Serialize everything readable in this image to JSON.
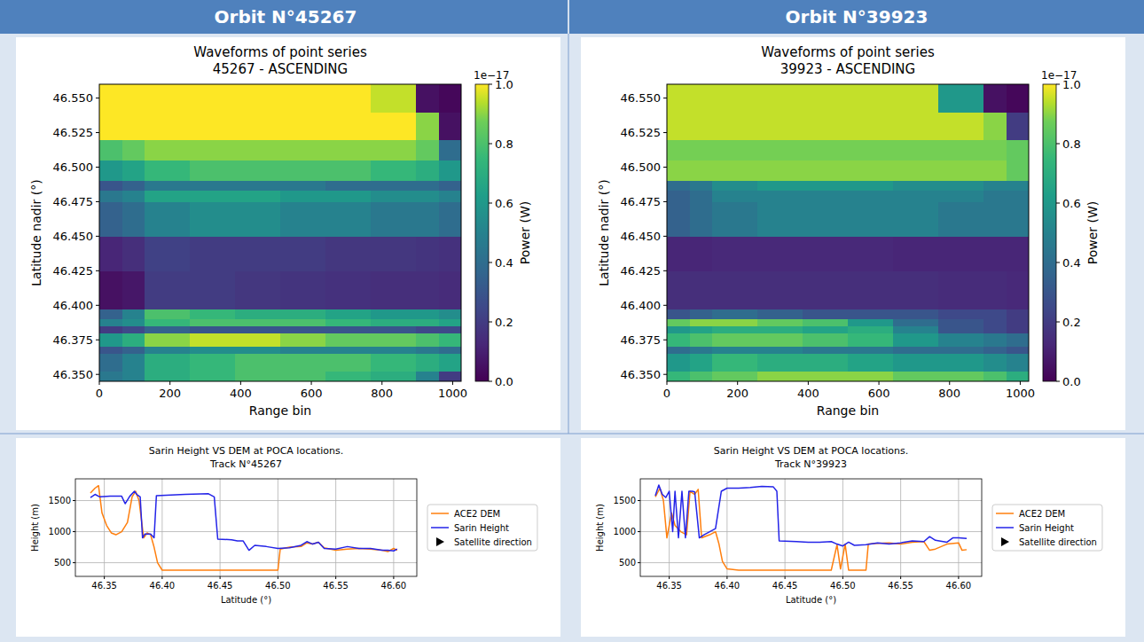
{
  "header": {
    "panels": [
      "Orbit N°45267",
      "Orbit N°39923"
    ]
  },
  "chart_data": [
    {
      "type": "heatmap",
      "title": "Waveforms of point series",
      "subtitle": "45267 - ASCENDING",
      "x_label": "Range bin",
      "y_label": "Latitude nadir (°)",
      "xlim": [
        0,
        1024
      ],
      "xticks": [
        0,
        200,
        400,
        600,
        800,
        1000
      ],
      "ylim": [
        46.345,
        46.56
      ],
      "yticks": [
        {
          "value": 46.35,
          "label": "46.350"
        },
        46.375,
        {
          "value": 46.4,
          "label": "46.400"
        },
        46.425,
        {
          "value": 46.45,
          "label": "46.450"
        },
        46.475,
        {
          "value": 46.5,
          "label": "46.500"
        },
        46.525,
        {
          "value": 46.55,
          "label": "46.550"
        }
      ],
      "x_edges": [
        0,
        64,
        128,
        256,
        384,
        512,
        640,
        768,
        896,
        960,
        1024
      ],
      "y_edges": [
        46.345,
        46.352,
        46.365,
        46.37,
        46.38,
        46.385,
        46.39,
        46.397,
        46.425,
        46.45,
        46.475,
        46.483,
        46.49,
        46.505,
        46.52,
        46.54,
        46.56
      ],
      "cells": [
        [
          0.45,
          0.5,
          0.7,
          0.75,
          0.8,
          0.8,
          0.75,
          0.7,
          0.5,
          0.2
        ],
        [
          0.4,
          0.5,
          0.7,
          0.75,
          0.8,
          0.8,
          0.8,
          0.75,
          0.7,
          0.65
        ],
        [
          0.3,
          0.35,
          0.5,
          0.55,
          0.55,
          0.5,
          0.5,
          0.5,
          0.45,
          0.4
        ],
        [
          0.6,
          0.7,
          0.9,
          0.95,
          0.95,
          0.9,
          0.85,
          0.85,
          0.8,
          0.75
        ],
        [
          0.2,
          0.25,
          0.35,
          0.3,
          0.3,
          0.3,
          0.3,
          0.3,
          0.25,
          0.25
        ],
        [
          0.5,
          0.55,
          0.75,
          0.8,
          0.8,
          0.8,
          0.75,
          0.7,
          0.7,
          0.65
        ],
        [
          0.35,
          0.5,
          0.8,
          0.75,
          0.7,
          0.7,
          0.65,
          0.6,
          0.6,
          0.55
        ],
        [
          0.05,
          0.07,
          0.2,
          0.2,
          0.18,
          0.17,
          0.16,
          0.15,
          0.15,
          0.14
        ],
        [
          0.12,
          0.15,
          0.22,
          0.2,
          0.2,
          0.2,
          0.18,
          0.18,
          0.17,
          0.16
        ],
        [
          0.35,
          0.4,
          0.5,
          0.55,
          0.55,
          0.5,
          0.5,
          0.45,
          0.45,
          0.4
        ],
        [
          0.45,
          0.5,
          0.65,
          0.65,
          0.65,
          0.6,
          0.6,
          0.55,
          0.55,
          0.5
        ],
        [
          0.3,
          0.35,
          0.45,
          0.45,
          0.45,
          0.45,
          0.4,
          0.4,
          0.4,
          0.35
        ],
        [
          0.6,
          0.65,
          0.75,
          0.8,
          0.8,
          0.8,
          0.8,
          0.75,
          0.7,
          0.6
        ],
        [
          0.8,
          0.85,
          0.9,
          0.9,
          0.9,
          0.9,
          0.9,
          0.9,
          0.85,
          0.4
        ],
        [
          1,
          1,
          1,
          1,
          1,
          1,
          1,
          1,
          0.9,
          0.05
        ],
        [
          1,
          1,
          1,
          1,
          1,
          1,
          1,
          0.95,
          0.05,
          0.02
        ]
      ],
      "colorbar": {
        "label": "Power (W)",
        "offset_text": "1e−17",
        "range": [
          0,
          1
        ],
        "ticks": [
          {
            "value": 0,
            "label": "0.0"
          },
          0.2,
          0.4,
          0.6,
          0.8,
          {
            "value": 1,
            "label": "1.0"
          }
        ]
      }
    },
    {
      "type": "heatmap",
      "title": "Waveforms of point series",
      "subtitle": "39923 - ASCENDING",
      "x_label": "Range bin",
      "y_label": "Latitude nadir (°)",
      "xlim": [
        0,
        1024
      ],
      "xticks": [
        0,
        200,
        400,
        600,
        800,
        1000
      ],
      "ylim": [
        46.345,
        46.56
      ],
      "yticks": [
        {
          "value": 46.35,
          "label": "46.350"
        },
        46.375,
        {
          "value": 46.4,
          "label": "46.400"
        },
        46.425,
        {
          "value": 46.45,
          "label": "46.450"
        },
        46.475,
        {
          "value": 46.5,
          "label": "46.500"
        },
        46.525,
        {
          "value": 46.55,
          "label": "46.550"
        }
      ],
      "x_edges": [
        0,
        64,
        128,
        256,
        384,
        512,
        640,
        768,
        896,
        960,
        1024
      ],
      "y_edges": [
        46.345,
        46.352,
        46.365,
        46.37,
        46.38,
        46.385,
        46.39,
        46.397,
        46.425,
        46.45,
        46.475,
        46.483,
        46.49,
        46.505,
        46.52,
        46.54,
        46.56
      ],
      "cells": [
        [
          0.75,
          0.8,
          0.85,
          0.9,
          0.9,
          0.9,
          0.85,
          0.85,
          0.8,
          0.7
        ],
        [
          0.6,
          0.65,
          0.75,
          0.7,
          0.7,
          0.65,
          0.6,
          0.6,
          0.55,
          0.5
        ],
        [
          0.4,
          0.45,
          0.5,
          0.5,
          0.45,
          0.45,
          0.4,
          0.4,
          0.35,
          0.3
        ],
        [
          0.75,
          0.8,
          0.85,
          0.85,
          0.8,
          0.75,
          0.6,
          0.5,
          0.45,
          0.4
        ],
        [
          0.6,
          0.65,
          0.7,
          0.7,
          0.65,
          0.7,
          0.5,
          0.3,
          0.25,
          0.2
        ],
        [
          0.85,
          0.9,
          0.9,
          0.85,
          0.8,
          0.6,
          0.4,
          0.3,
          0.25,
          0.2
        ],
        [
          0.3,
          0.35,
          0.4,
          0.35,
          0.3,
          0.3,
          0.3,
          0.25,
          0.25,
          0.2
        ],
        [
          0.15,
          0.15,
          0.15,
          0.15,
          0.15,
          0.15,
          0.15,
          0.14,
          0.14,
          0.13
        ],
        [
          0.12,
          0.12,
          0.13,
          0.13,
          0.13,
          0.13,
          0.12,
          0.12,
          0.12,
          0.12
        ],
        [
          0.35,
          0.4,
          0.45,
          0.5,
          0.5,
          0.5,
          0.5,
          0.45,
          0.45,
          0.45
        ],
        [
          0.35,
          0.4,
          0.5,
          0.5,
          0.5,
          0.5,
          0.5,
          0.5,
          0.45,
          0.45
        ],
        [
          0.4,
          0.45,
          0.55,
          0.6,
          0.6,
          0.6,
          0.55,
          0.55,
          0.5,
          0.5
        ],
        [
          0.9,
          0.9,
          0.9,
          0.9,
          0.9,
          0.9,
          0.9,
          0.9,
          0.9,
          0.85
        ],
        [
          0.88,
          0.88,
          0.88,
          0.88,
          0.88,
          0.88,
          0.88,
          0.88,
          0.88,
          0.85
        ],
        [
          0.95,
          0.95,
          0.95,
          0.95,
          0.95,
          0.95,
          0.95,
          0.95,
          0.9,
          0.2
        ],
        [
          0.95,
          0.95,
          0.95,
          0.95,
          0.95,
          0.95,
          0.95,
          0.6,
          0.05,
          0.02
        ]
      ],
      "colorbar": {
        "label": "Power (W)",
        "offset_text": "1e−17",
        "range": [
          0,
          1
        ],
        "ticks": [
          {
            "value": 0,
            "label": "0.0"
          },
          0.2,
          0.4,
          0.6,
          0.8,
          {
            "value": 1,
            "label": "1.0"
          }
        ]
      }
    },
    {
      "type": "line",
      "title": "Sarin Height VS DEM at POCA locations.",
      "subtitle": "Track N°45267",
      "x_label": "Latitude (°)",
      "y_label": "Height (m)",
      "xlim": [
        46.325,
        46.62
      ],
      "xticks": [
        46.35,
        {
          "value": 46.4,
          "label": "46.40"
        },
        46.45,
        {
          "value": 46.5,
          "label": "46.50"
        },
        46.55,
        {
          "value": 46.6,
          "label": "46.60"
        }
      ],
      "ylim": [
        280,
        1850
      ],
      "yticks": [
        500,
        1000,
        1500
      ],
      "grid": true,
      "legend": "right",
      "series": [
        {
          "name": "ACE2 DEM",
          "color": "#ff7f0e",
          "x": [
            46.338,
            46.342,
            46.345,
            46.348,
            46.352,
            46.356,
            46.36,
            46.365,
            46.37,
            46.374,
            46.377,
            46.38,
            46.384,
            46.387,
            46.39,
            46.393,
            46.396,
            46.4,
            46.45,
            46.5,
            46.502,
            46.51,
            46.52,
            46.525,
            46.53,
            46.535,
            46.54,
            46.55,
            46.56,
            46.57,
            46.58,
            46.59,
            46.595,
            46.6,
            46.603
          ],
          "values": [
            1620,
            1700,
            1740,
            1300,
            1100,
            980,
            950,
            1000,
            1150,
            1560,
            1650,
            1500,
            900,
            980,
            950,
            750,
            500,
            380,
            380,
            380,
            720,
            750,
            760,
            820,
            800,
            830,
            740,
            700,
            720,
            730,
            720,
            700,
            680,
            730,
            700
          ]
        },
        {
          "name": "Sarin Height",
          "color": "#2424e8",
          "x": [
            46.338,
            46.342,
            46.346,
            46.355,
            46.365,
            46.368,
            46.372,
            46.376,
            46.378,
            46.381,
            46.383,
            46.385,
            46.39,
            46.393,
            46.395,
            46.42,
            46.44,
            46.445,
            46.448,
            46.46,
            46.465,
            46.47,
            46.475,
            46.48,
            46.49,
            46.5,
            46.51,
            46.52,
            46.525,
            46.53,
            46.535,
            46.54,
            46.55,
            46.56,
            46.57,
            46.58,
            46.59,
            46.595,
            46.6,
            46.603
          ],
          "values": [
            1550,
            1600,
            1560,
            1570,
            1570,
            1450,
            1570,
            1650,
            1600,
            1560,
            900,
            960,
            960,
            900,
            1580,
            1600,
            1610,
            1560,
            880,
            870,
            850,
            850,
            700,
            780,
            760,
            730,
            740,
            780,
            840,
            800,
            830,
            730,
            720,
            760,
            730,
            730,
            700,
            700,
            690,
            720
          ]
        },
        {
          "name": "Satellite direction",
          "color": "#000000",
          "marker": "triangle",
          "line_style": "none",
          "x": [],
          "values": []
        }
      ]
    },
    {
      "type": "line",
      "title": "Sarin Height VS DEM at POCA locations.",
      "subtitle": "Track N°39923",
      "x_label": "Latitude (°)",
      "y_label": "Height (m)",
      "xlim": [
        46.325,
        46.62
      ],
      "xticks": [
        46.35,
        {
          "value": 46.4,
          "label": "46.40"
        },
        46.45,
        {
          "value": 46.5,
          "label": "46.50"
        },
        46.55,
        {
          "value": 46.6,
          "label": "46.60"
        }
      ],
      "ylim": [
        280,
        1850
      ],
      "yticks": [
        500,
        1000,
        1500
      ],
      "grid": true,
      "legend": "right",
      "series": [
        {
          "name": "ACE2 DEM",
          "color": "#ff7f0e",
          "x": [
            46.338,
            46.342,
            46.345,
            46.348,
            46.352,
            46.355,
            46.36,
            46.365,
            46.368,
            46.372,
            46.375,
            46.378,
            46.385,
            46.39,
            46.393,
            46.396,
            46.4,
            46.41,
            46.45,
            46.49,
            46.495,
            46.498,
            46.502,
            46.505,
            46.52,
            46.522,
            46.53,
            46.54,
            46.55,
            46.56,
            46.57,
            46.575,
            46.58,
            46.59,
            46.6,
            46.603,
            46.607
          ],
          "values": [
            1560,
            1700,
            1500,
            900,
            1300,
            1100,
            1000,
            950,
            1650,
            1600,
            1680,
            900,
            950,
            1000,
            800,
            520,
            400,
            380,
            380,
            380,
            790,
            400,
            800,
            380,
            380,
            800,
            810,
            820,
            800,
            830,
            840,
            700,
            720,
            800,
            820,
            700,
            710
          ]
        },
        {
          "name": "Sarin Height",
          "color": "#2424e8",
          "x": [
            46.338,
            46.341,
            46.344,
            46.347,
            46.35,
            46.353,
            46.355,
            46.358,
            46.361,
            46.364,
            46.367,
            46.37,
            46.372,
            46.376,
            46.38,
            46.385,
            46.39,
            46.395,
            46.4,
            46.41,
            46.42,
            46.43,
            46.44,
            46.443,
            46.445,
            46.46,
            46.47,
            46.48,
            46.49,
            46.495,
            46.5,
            46.505,
            46.51,
            46.52,
            46.53,
            46.54,
            46.55,
            46.56,
            46.57,
            46.575,
            46.58,
            46.59,
            46.595,
            46.6,
            46.607
          ],
          "values": [
            1580,
            1750,
            1600,
            1550,
            1650,
            1000,
            1650,
            900,
            1650,
            900,
            1650,
            1650,
            1640,
            900,
            950,
            1000,
            1050,
            1650,
            1700,
            1700,
            1710,
            1730,
            1720,
            1650,
            850,
            840,
            830,
            830,
            840,
            800,
            770,
            830,
            780,
            790,
            820,
            800,
            820,
            850,
            840,
            920,
            860,
            830,
            900,
            900,
            890
          ]
        },
        {
          "name": "Satellite direction",
          "color": "#000000",
          "marker": "triangle",
          "line_style": "none",
          "x": [],
          "values": []
        }
      ]
    }
  ]
}
